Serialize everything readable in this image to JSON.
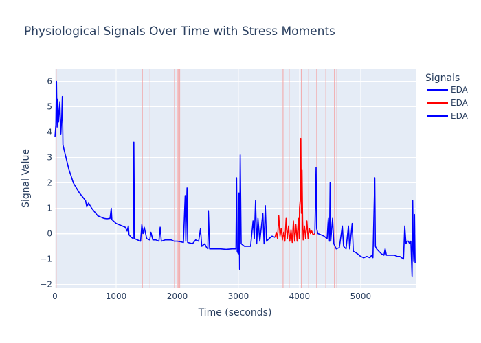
{
  "chart_data": {
    "type": "line",
    "title": "Physiological Signals Over Time with Stress Moments",
    "xlabel": "Time (seconds)",
    "ylabel": "Signal Value",
    "xlim": [
      0,
      5900
    ],
    "ylim": [
      -2.15,
      6.5
    ],
    "x_ticks": [
      0,
      1000,
      2000,
      3000,
      4000,
      5000
    ],
    "y_ticks": [
      -2,
      -1,
      0,
      1,
      2,
      3,
      4,
      5,
      6
    ],
    "grid": true,
    "legend_title": "Signals",
    "legend_position": "right",
    "colors": {
      "eda": "#0000ff",
      "stress": "#ff0000",
      "stress_band": "#f4a0a0",
      "plot_bg": "#e5ecf6"
    },
    "series": [
      {
        "name": "EDA",
        "color": "#0000ff",
        "points": [
          [
            0,
            3.8
          ],
          [
            15,
            4.3
          ],
          [
            25,
            6.0
          ],
          [
            35,
            4.2
          ],
          [
            45,
            5.3
          ],
          [
            60,
            4.4
          ],
          [
            80,
            5.2
          ],
          [
            95,
            3.9
          ],
          [
            110,
            4.6
          ],
          [
            120,
            5.4
          ],
          [
            130,
            3.5
          ],
          [
            150,
            3.3
          ],
          [
            170,
            3.1
          ],
          [
            200,
            2.8
          ],
          [
            230,
            2.5
          ],
          [
            260,
            2.3
          ],
          [
            300,
            2.0
          ],
          [
            350,
            1.8
          ],
          [
            400,
            1.6
          ],
          [
            450,
            1.45
          ],
          [
            500,
            1.3
          ],
          [
            520,
            1.05
          ],
          [
            550,
            1.2
          ],
          [
            600,
            1.0
          ],
          [
            650,
            0.85
          ],
          [
            700,
            0.7
          ],
          [
            750,
            0.65
          ],
          [
            800,
            0.6
          ],
          [
            850,
            0.58
          ],
          [
            900,
            0.6
          ],
          [
            920,
            1.0
          ],
          [
            930,
            0.55
          ],
          [
            1000,
            0.4
          ],
          [
            1050,
            0.35
          ],
          [
            1100,
            0.3
          ],
          [
            1150,
            0.25
          ],
          [
            1180,
            0.1
          ],
          [
            1200,
            0.3
          ],
          [
            1210,
            -0.05
          ],
          [
            1250,
            -0.15
          ],
          [
            1280,
            -0.2
          ],
          [
            1290,
            3.6
          ],
          [
            1300,
            -0.2
          ],
          [
            1350,
            -0.25
          ],
          [
            1400,
            -0.3
          ],
          [
            1420,
            0.35
          ],
          [
            1440,
            0.0
          ],
          [
            1460,
            0.25
          ],
          [
            1500,
            -0.2
          ],
          [
            1550,
            -0.25
          ],
          [
            1570,
            0.05
          ],
          [
            1600,
            -0.25
          ],
          [
            1650,
            -0.25
          ],
          [
            1700,
            -0.3
          ],
          [
            1720,
            0.25
          ],
          [
            1740,
            -0.3
          ],
          [
            1800,
            -0.25
          ],
          [
            1900,
            -0.25
          ],
          [
            1950,
            -0.3
          ],
          [
            2000,
            -0.3
          ],
          [
            2050,
            -0.32
          ],
          [
            2100,
            -0.35
          ],
          [
            2130,
            1.5
          ],
          [
            2140,
            -0.3
          ],
          [
            2160,
            1.8
          ],
          [
            2170,
            -0.35
          ],
          [
            2250,
            -0.4
          ],
          [
            2300,
            -0.25
          ],
          [
            2350,
            -0.3
          ],
          [
            2380,
            0.2
          ],
          [
            2400,
            -0.5
          ],
          [
            2450,
            -0.4
          ],
          [
            2480,
            -0.55
          ],
          [
            2500,
            -0.6
          ],
          [
            2510,
            0.9
          ],
          [
            2530,
            -0.6
          ],
          [
            2600,
            -0.6
          ],
          [
            2700,
            -0.6
          ],
          [
            2800,
            -0.62
          ],
          [
            2900,
            -0.6
          ],
          [
            2960,
            -0.6
          ],
          [
            2970,
            2.2
          ],
          [
            2980,
            -0.7
          ],
          [
            3000,
            -0.8
          ],
          [
            3010,
            1.6
          ],
          [
            3020,
            -1.4
          ],
          [
            3030,
            3.1
          ],
          [
            3045,
            -0.4
          ],
          [
            3100,
            -0.5
          ],
          [
            3150,
            -0.5
          ],
          [
            3200,
            -0.5
          ],
          [
            3240,
            0.5
          ],
          [
            3260,
            -0.2
          ],
          [
            3280,
            1.3
          ],
          [
            3300,
            -0.4
          ],
          [
            3320,
            0.6
          ],
          [
            3350,
            -0.3
          ],
          [
            3400,
            0.8
          ],
          [
            3420,
            -0.4
          ],
          [
            3440,
            1.1
          ],
          [
            3460,
            -0.3
          ],
          [
            3500,
            -0.2
          ],
          [
            3550,
            -0.1
          ],
          [
            3600,
            -0.15
          ]
        ]
      },
      {
        "name": "EDA",
        "color": "#ff0000",
        "points": [
          [
            3600,
            -0.15
          ],
          [
            3620,
            0.05
          ],
          [
            3640,
            -0.2
          ],
          [
            3660,
            0.7
          ],
          [
            3680,
            -0.1
          ],
          [
            3700,
            0.2
          ],
          [
            3720,
            -0.25
          ],
          [
            3740,
            0.05
          ],
          [
            3760,
            -0.3
          ],
          [
            3780,
            0.6
          ],
          [
            3800,
            -0.2
          ],
          [
            3820,
            0.3
          ],
          [
            3840,
            -0.3
          ],
          [
            3860,
            0.15
          ],
          [
            3880,
            -0.35
          ],
          [
            3900,
            0.5
          ],
          [
            3920,
            -0.3
          ],
          [
            3940,
            0.35
          ],
          [
            3960,
            -0.3
          ],
          [
            3980,
            0.6
          ],
          [
            3995,
            -0.2
          ],
          [
            4000,
            1.0
          ],
          [
            4010,
            1.3
          ],
          [
            4020,
            3.75
          ],
          [
            4030,
            0.8
          ],
          [
            4040,
            2.5
          ],
          [
            4050,
            0.5
          ],
          [
            4060,
            -0.25
          ],
          [
            4080,
            0.3
          ],
          [
            4100,
            -0.2
          ],
          [
            4120,
            0.5
          ],
          [
            4140,
            -0.2
          ],
          [
            4160,
            0.2
          ],
          [
            4180,
            0.0
          ],
          [
            4200,
            0.1
          ],
          [
            4220,
            -0.05
          ],
          [
            4250,
            0.0
          ]
        ]
      },
      {
        "name": "EDA",
        "color": "#0000ff",
        "points": [
          [
            4250,
            0.0
          ],
          [
            4270,
            2.6
          ],
          [
            4280,
            0.2
          ],
          [
            4300,
            0.0
          ],
          [
            4350,
            -0.05
          ],
          [
            4400,
            -0.1
          ],
          [
            4450,
            -0.2
          ],
          [
            4470,
            0.6
          ],
          [
            4490,
            -0.3
          ],
          [
            4500,
            2.0
          ],
          [
            4510,
            -0.3
          ],
          [
            4540,
            0.6
          ],
          [
            4560,
            -0.4
          ],
          [
            4600,
            -0.6
          ],
          [
            4650,
            -0.55
          ],
          [
            4700,
            0.3
          ],
          [
            4720,
            -0.5
          ],
          [
            4760,
            -0.6
          ],
          [
            4800,
            0.3
          ],
          [
            4820,
            -0.6
          ],
          [
            4860,
            0.4
          ],
          [
            4880,
            -0.7
          ],
          [
            4920,
            -0.75
          ],
          [
            4950,
            -0.8
          ],
          [
            5000,
            -0.9
          ],
          [
            5050,
            -0.95
          ],
          [
            5100,
            -0.9
          ],
          [
            5150,
            -0.95
          ],
          [
            5180,
            -0.85
          ],
          [
            5200,
            -0.95
          ],
          [
            5230,
            2.2
          ],
          [
            5240,
            -0.5
          ],
          [
            5260,
            -0.6
          ],
          [
            5300,
            -0.7
          ],
          [
            5340,
            -0.8
          ],
          [
            5380,
            -0.85
          ],
          [
            5400,
            -0.6
          ],
          [
            5420,
            -0.85
          ],
          [
            5500,
            -0.85
          ],
          [
            5550,
            -0.85
          ],
          [
            5600,
            -0.9
          ],
          [
            5640,
            -0.9
          ],
          [
            5700,
            -1.0
          ],
          [
            5720,
            0.3
          ],
          [
            5740,
            -0.4
          ],
          [
            5760,
            -0.3
          ],
          [
            5780,
            -0.3
          ],
          [
            5800,
            -0.4
          ],
          [
            5820,
            -0.3
          ],
          [
            5840,
            -1.7
          ],
          [
            5850,
            1.3
          ],
          [
            5860,
            -0.5
          ],
          [
            5870,
            -1.1
          ],
          [
            5880,
            0.75
          ],
          [
            5890,
            -1.15
          ]
        ]
      }
    ],
    "stress_moments": [
      20,
      1430,
      1555,
      1955,
      2010,
      2025,
      2040,
      3730,
      3830,
      4030,
      4150,
      4280,
      4430,
      4570,
      4610
    ]
  }
}
